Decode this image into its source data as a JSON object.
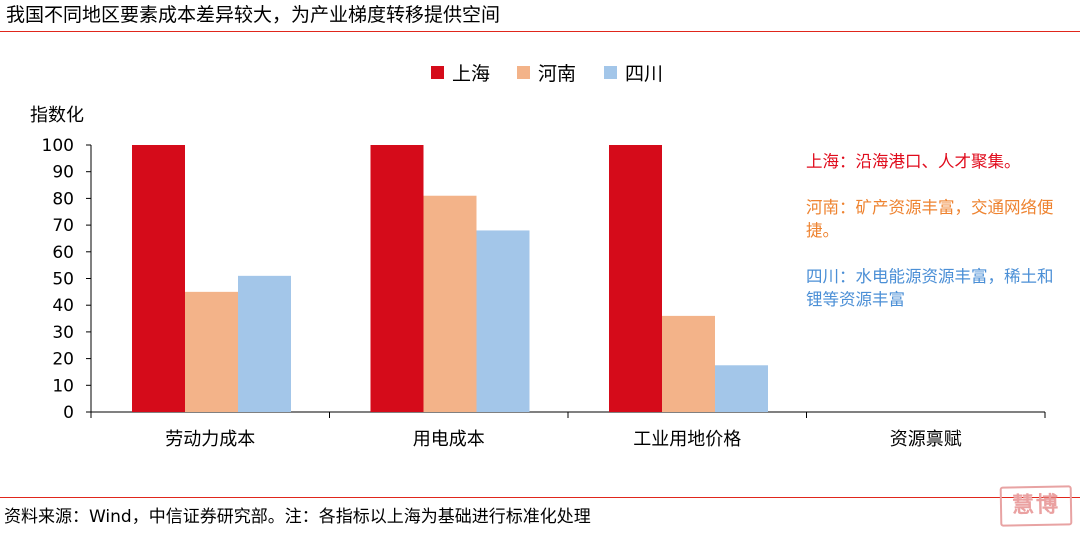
{
  "page": {
    "title": "我国不同地区要素成本差异较大，为产业梯度转移提供空间",
    "source": "资料来源：Wind，中信证券研究部。注：各指标以上海为基础进行标准化处理",
    "watermark": "慧博"
  },
  "annotations": [
    {
      "text": "上海：沿海港口、人才聚集。",
      "color": "#e00b1c"
    },
    {
      "text": "河南：矿产资源丰富，交通网络便捷。",
      "color": "#ee8330"
    },
    {
      "text": "四川：水电能源资源丰富，稀土和锂等资源丰富",
      "color": "#4b8fd6"
    }
  ],
  "chart_data": {
    "type": "bar",
    "ylabel": "指数化",
    "ylim": [
      0,
      100
    ],
    "yticks": [
      0,
      10,
      20,
      30,
      40,
      50,
      60,
      70,
      80,
      90,
      100
    ],
    "categories": [
      "劳动力成本",
      "用电成本",
      "工业用地价格",
      "资源禀赋"
    ],
    "legend_position": "top-center",
    "grid": false,
    "series": [
      {
        "name": "上海",
        "color": "#d50b1a",
        "values": [
          100,
          100,
          100,
          null
        ]
      },
      {
        "name": "河南",
        "color": "#f3b389",
        "values": [
          45,
          81,
          36,
          null
        ]
      },
      {
        "name": "四川",
        "color": "#a3c6e9",
        "values": [
          51,
          68,
          17.5,
          null
        ]
      }
    ]
  }
}
